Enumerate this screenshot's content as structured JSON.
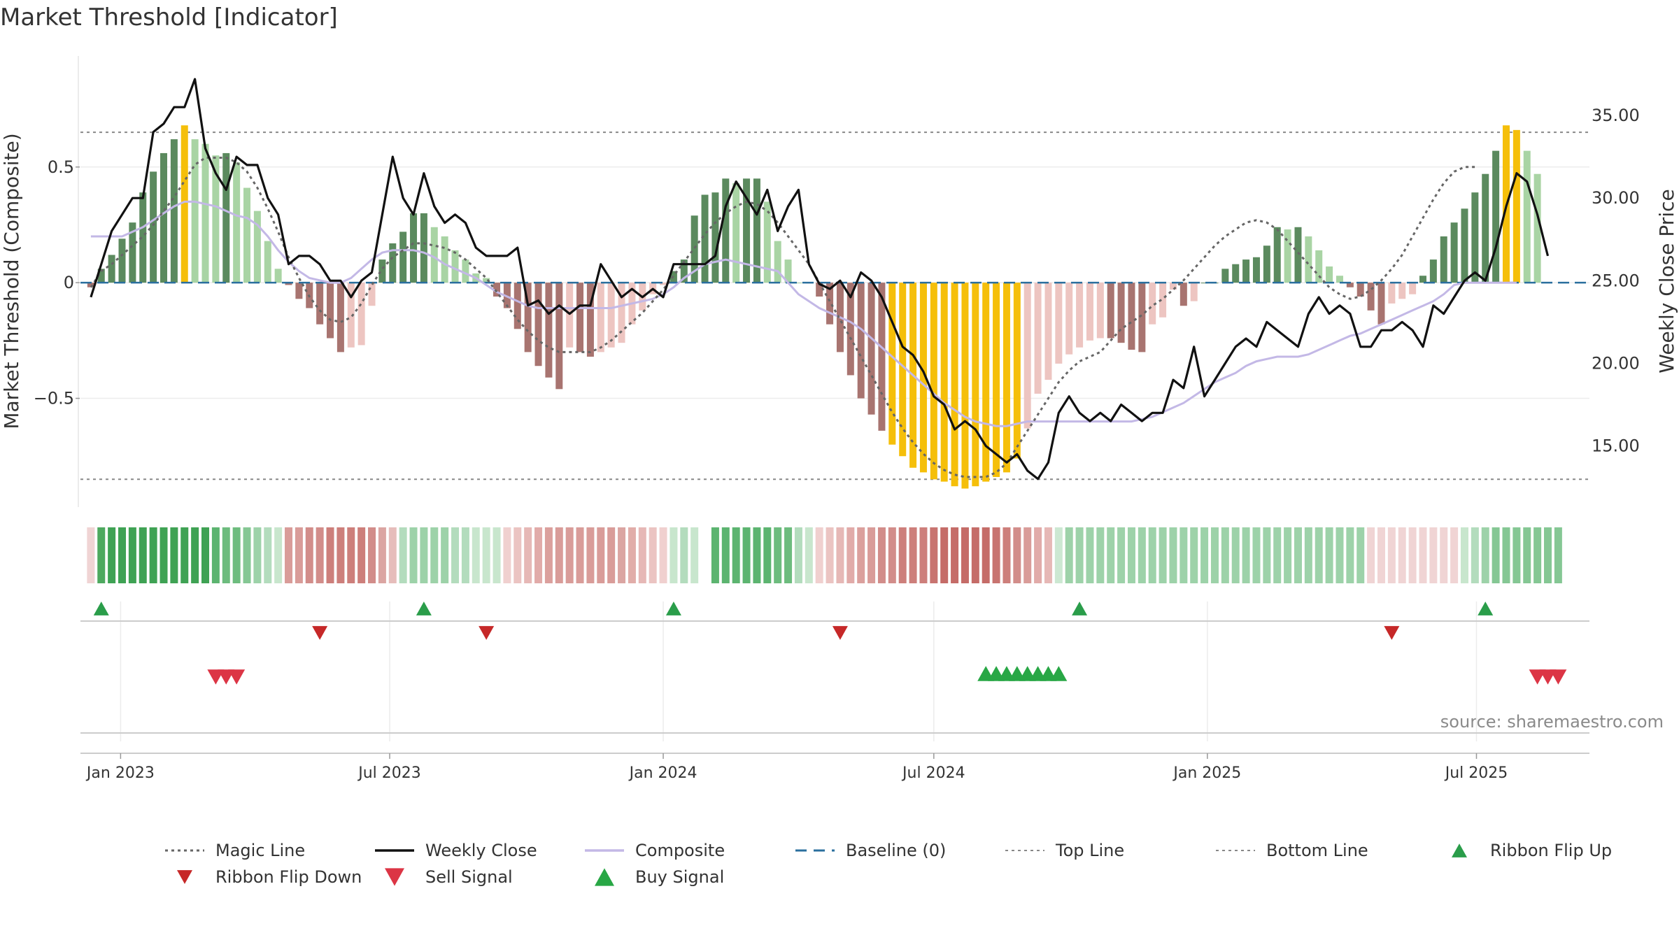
{
  "chart_data": {
    "type": "bar",
    "title": "Market Threshold [Indicator]",
    "ylabel_left": "Market Threshold (Composite)",
    "ylabel_right": "Weekly Close Price",
    "source": "source: sharemaestro.com",
    "x_range": [
      "2022-12-05",
      "2025-09-15"
    ],
    "x_ticks": [
      {
        "date": "2023-01-01",
        "label": "Jan 2023"
      },
      {
        "date": "2023-07-01",
        "label": "Jul 2023"
      },
      {
        "date": "2024-01-01",
        "label": "Jan 2024"
      },
      {
        "date": "2024-07-01",
        "label": "Jul 2024"
      },
      {
        "date": "2025-01-01",
        "label": "Jan 2025"
      },
      {
        "date": "2025-07-01",
        "label": "Jul 2025"
      }
    ],
    "left_axis": {
      "ylim": [
        -0.97,
        0.98
      ],
      "ticks": [
        {
          "v": 0.5,
          "label": "0.5"
        },
        {
          "v": 0,
          "label": "0"
        },
        {
          "v": -0.5,
          "label": "−0.5"
        }
      ]
    },
    "right_axis": {
      "ylim": [
        11.3,
        38.6
      ],
      "ticks": [
        {
          "v": 35,
          "label": "35.00"
        },
        {
          "v": 30,
          "label": "30.00"
        },
        {
          "v": 25,
          "label": "25.00"
        },
        {
          "v": 20,
          "label": "20.00"
        },
        {
          "v": 15,
          "label": "15.00"
        }
      ]
    },
    "top_line": 0.65,
    "bottom_line": -0.85,
    "start_date": "2022-12-12",
    "week_step_days": 7,
    "composite_bars": [
      -0.02,
      0.06,
      0.12,
      0.19,
      0.26,
      0.39,
      0.48,
      0.56,
      0.62,
      0.68,
      0.62,
      0.6,
      0.55,
      0.56,
      0.52,
      0.41,
      0.31,
      0.18,
      0.06,
      -0.01,
      -0.07,
      -0.11,
      -0.18,
      -0.24,
      -0.3,
      -0.28,
      -0.27,
      -0.1,
      0.1,
      0.17,
      0.22,
      0.3,
      0.3,
      0.24,
      0.2,
      0.14,
      0.1,
      0.04,
      0.02,
      -0.06,
      -0.11,
      -0.2,
      -0.3,
      -0.36,
      -0.41,
      -0.46,
      -0.28,
      -0.3,
      -0.32,
      -0.3,
      -0.28,
      -0.26,
      -0.18,
      -0.12,
      -0.05,
      -0.01,
      0.05,
      0.1,
      0.29,
      0.38,
      0.39,
      0.45,
      0.43,
      0.45,
      0.45,
      0.35,
      0.18,
      0.1,
      0.0,
      0.0,
      -0.06,
      -0.18,
      -0.3,
      -0.4,
      -0.5,
      -0.57,
      -0.64,
      -0.7,
      -0.75,
      -0.8,
      -0.82,
      -0.85,
      -0.86,
      -0.88,
      -0.89,
      -0.88,
      -0.86,
      -0.84,
      -0.82,
      -0.76,
      -0.63,
      -0.48,
      -0.42,
      -0.35,
      -0.31,
      -0.28,
      -0.25,
      -0.24,
      -0.24,
      -0.26,
      -0.29,
      -0.3,
      -0.18,
      -0.15,
      -0.03,
      -0.1,
      -0.08,
      0.0,
      0.0,
      0.06,
      0.08,
      0.1,
      0.11,
      0.16,
      0.24,
      0.23,
      0.24,
      0.2,
      0.14,
      0.07,
      0.03,
      -0.02,
      -0.06,
      -0.12,
      -0.18,
      -0.09,
      -0.07,
      -0.05,
      0.03,
      0.1,
      0.2,
      0.26,
      0.32,
      0.39,
      0.47,
      0.57,
      0.68,
      0.66,
      0.57,
      0.47
    ],
    "magic_line": [
      -0.02,
      0.05,
      0.08,
      0.12,
      0.16,
      0.2,
      0.25,
      0.31,
      0.37,
      0.44,
      0.51,
      0.54,
      0.54,
      0.54,
      0.52,
      0.48,
      0.41,
      0.32,
      0.22,
      0.11,
      0.02,
      -0.06,
      -0.12,
      -0.16,
      -0.17,
      -0.15,
      -0.09,
      -0.01,
      0.06,
      0.11,
      0.14,
      0.17,
      0.17,
      0.16,
      0.15,
      0.13,
      0.1,
      0.06,
      0.02,
      -0.04,
      -0.1,
      -0.16,
      -0.21,
      -0.25,
      -0.28,
      -0.3,
      -0.3,
      -0.3,
      -0.3,
      -0.28,
      -0.25,
      -0.21,
      -0.17,
      -0.13,
      -0.08,
      -0.03,
      0.03,
      0.09,
      0.15,
      0.21,
      0.26,
      0.3,
      0.33,
      0.35,
      0.34,
      0.31,
      0.26,
      0.2,
      0.14,
      0.08,
      0.0,
      -0.08,
      -0.16,
      -0.24,
      -0.32,
      -0.4,
      -0.48,
      -0.56,
      -0.63,
      -0.69,
      -0.74,
      -0.78,
      -0.81,
      -0.83,
      -0.84,
      -0.84,
      -0.84,
      -0.82,
      -0.78,
      -0.71,
      -0.64,
      -0.57,
      -0.5,
      -0.43,
      -0.38,
      -0.34,
      -0.32,
      -0.3,
      -0.25,
      -0.2,
      -0.17,
      -0.14,
      -0.1,
      -0.07,
      -0.03,
      0.01,
      0.06,
      0.11,
      0.16,
      0.2,
      0.23,
      0.26,
      0.27,
      0.26,
      0.23,
      0.18,
      0.13,
      0.08,
      0.03,
      -0.02,
      -0.05,
      -0.07,
      -0.06,
      -0.03,
      0.01,
      0.06,
      0.12,
      0.2,
      0.28,
      0.36,
      0.43,
      0.48,
      0.5,
      0.5
    ],
    "composite_line": [
      0.2,
      0.2,
      0.2,
      0.2,
      0.22,
      0.24,
      0.27,
      0.3,
      0.33,
      0.35,
      0.35,
      0.34,
      0.33,
      0.31,
      0.29,
      0.28,
      0.25,
      0.2,
      0.14,
      0.09,
      0.05,
      0.02,
      0.01,
      0.0,
      0.0,
      0.02,
      0.06,
      0.1,
      0.13,
      0.14,
      0.14,
      0.14,
      0.13,
      0.11,
      0.08,
      0.06,
      0.04,
      0.02,
      -0.01,
      -0.04,
      -0.06,
      -0.08,
      -0.1,
      -0.11,
      -0.11,
      -0.11,
      -0.11,
      -0.11,
      -0.11,
      -0.11,
      -0.11,
      -0.1,
      -0.09,
      -0.08,
      -0.07,
      -0.05,
      -0.02,
      0.02,
      0.05,
      0.08,
      0.09,
      0.1,
      0.09,
      0.08,
      0.07,
      0.06,
      0.05,
      0.0,
      -0.05,
      -0.08,
      -0.11,
      -0.13,
      -0.15,
      -0.17,
      -0.2,
      -0.24,
      -0.28,
      -0.32,
      -0.36,
      -0.4,
      -0.44,
      -0.48,
      -0.52,
      -0.55,
      -0.58,
      -0.6,
      -0.61,
      -0.62,
      -0.62,
      -0.61,
      -0.6,
      -0.6,
      -0.6,
      -0.6,
      -0.6,
      -0.6,
      -0.6,
      -0.6,
      -0.6,
      -0.6,
      -0.6,
      -0.59,
      -0.58,
      -0.56,
      -0.54,
      -0.52,
      -0.49,
      -0.46,
      -0.43,
      -0.41,
      -0.39,
      -0.36,
      -0.34,
      -0.33,
      -0.32,
      -0.32,
      -0.32,
      -0.31,
      -0.29,
      -0.27,
      -0.25,
      -0.23,
      -0.22,
      -0.2,
      -0.18,
      -0.16,
      -0.14,
      -0.12,
      -0.1,
      -0.08,
      -0.05,
      -0.01,
      0.0,
      0.0,
      0.0,
      0.0,
      0.0,
      0.0
    ],
    "weekly_close": [
      24.0,
      26.0,
      28.0,
      29.0,
      30.0,
      30.0,
      34.0,
      34.5,
      35.5,
      35.5,
      37.2,
      33.0,
      31.5,
      30.5,
      32.5,
      32.0,
      32.0,
      30.0,
      29.0,
      26.0,
      26.5,
      26.5,
      26.0,
      25.0,
      25.0,
      24.0,
      25.0,
      25.5,
      29.0,
      32.5,
      30.0,
      29.0,
      31.5,
      29.5,
      28.5,
      29.0,
      28.5,
      27.0,
      26.5,
      26.5,
      26.5,
      27.0,
      23.5,
      23.8,
      23.0,
      23.5,
      23.0,
      23.5,
      23.5,
      26.0,
      25.0,
      24.0,
      24.5,
      24.0,
      24.5,
      24.0,
      26.0,
      26.0,
      26.0,
      26.0,
      26.5,
      29.5,
      31.0,
      30.0,
      29.0,
      30.5,
      28.0,
      29.5,
      30.5,
      26.0,
      24.8,
      24.5,
      25.0,
      24.0,
      25.5,
      25.0,
      24.0,
      22.5,
      21.0,
      20.5,
      19.5,
      18.0,
      17.5,
      16.0,
      16.5,
      16.0,
      15.0,
      14.5,
      14.0,
      14.5,
      13.5,
      13.0,
      14.0,
      17.0,
      18.0,
      17.0,
      16.5,
      17.0,
      16.5,
      17.5,
      17.0,
      16.5,
      17.0,
      17.0,
      19.0,
      18.5,
      21.0,
      18.0,
      19.0,
      20.0,
      21.0,
      21.5,
      21.0,
      22.5,
      22.0,
      21.5,
      21.0,
      23.0,
      24.0,
      23.0,
      23.5,
      23.0,
      21.0,
      21.0,
      22.0,
      22.0,
      22.5,
      22.0,
      21.0,
      23.5,
      23.0,
      24.0,
      25.0,
      25.5,
      25.0,
      27.0,
      29.5,
      31.5,
      31.0,
      29.0,
      26.5
    ],
    "ribbon_colors": [
      "#f0d4d4",
      "#4ea95f",
      "#3fa254",
      "#3fa254",
      "#3fa254",
      "#3fa254",
      "#3fa254",
      "#3fa254",
      "#3fa254",
      "#3fa254",
      "#3fa254",
      "#3fa254",
      "#5cb470",
      "#6dbc7e",
      "#6dbc7e",
      "#85c794",
      "#9dd2a9",
      "#b3dcbd",
      "#c8e6cd",
      "#d99c99",
      "#d99c99",
      "#d28d8a",
      "#d28d8a",
      "#cd7f7b",
      "#cd7f7b",
      "#cd7f7b",
      "#cd7f7b",
      "#d28d8a",
      "#dba5a2",
      "#e6bdbb",
      "#b3dcbd",
      "#9dd2a9",
      "#9dd2a9",
      "#9dd2a9",
      "#9dd2a9",
      "#b3dcbd",
      "#b3dcbd",
      "#c8e6cd",
      "#c8e6cd",
      "#c8e6cd",
      "#f0d0cf",
      "#ebc4c2",
      "#e6b8b6",
      "#e1aba9",
      "#dba09d",
      "#d99c99",
      "#d99c99",
      "#d99c99",
      "#d99c99",
      "#d99c99",
      "#d99c99",
      "#dba5a2",
      "#e1ada9",
      "#e6b8b6",
      "#ebc4c2",
      "#f0d0cf",
      "#c8e6cd",
      "#b3dcbd",
      "#c8e6cd",
      "#ffffff",
      "#5cb470",
      "#5cb470",
      "#5cb470",
      "#5cb470",
      "#5cb470",
      "#5cb470",
      "#6dbc7e",
      "#6dbc7e",
      "#b3dcbd",
      "#c8e6cd",
      "#f0d0cf",
      "#ebc4c2",
      "#e6b8b6",
      "#e1aba9",
      "#dba09d",
      "#d99c99",
      "#d28d8a",
      "#d28d8a",
      "#cd7f7b",
      "#cd7f7b",
      "#cd7f7b",
      "#c87470",
      "#c56c68",
      "#c56c68",
      "#c56c68",
      "#c56c68",
      "#c56c68",
      "#c87470",
      "#cd7f7b",
      "#d28d8a",
      "#d99c99",
      "#e1aba9",
      "#e6b8b6",
      "#cce8d2",
      "#9dd2a9",
      "#9dd2a9",
      "#9dd2a9",
      "#9dd2a9",
      "#9dd2a9",
      "#9dd2a9",
      "#9dd2a9",
      "#9dd2a9",
      "#9dd2a9",
      "#9dd2a9",
      "#9dd2a9",
      "#9dd2a9",
      "#9dd2a9",
      "#9dd2a9",
      "#9dd2a9",
      "#9dd2a9",
      "#9dd2a9",
      "#9dd2a9",
      "#9dd2a9",
      "#9dd2a9",
      "#9dd2a9",
      "#9dd2a9",
      "#9dd2a9",
      "#9dd2a9",
      "#9dd2a9",
      "#9dd2a9",
      "#9dd2a9",
      "#9dd2a9",
      "#9dd2a9",
      "#f0d4d4",
      "#f0d4d4",
      "#f0d4d4",
      "#f0d4d4",
      "#f0d4d4",
      "#f0d4d4",
      "#f0d4d4",
      "#f0d4d4",
      "#f0d4d4",
      "#c8e6cd",
      "#b3dcbd",
      "#9dd2a9",
      "#85c794",
      "#85c794",
      "#85c794",
      "#85c794",
      "#85c794",
      "#85c794",
      "#85c794"
    ],
    "ribbon_flip_up": [
      "2022-12-19",
      "2023-07-24",
      "2024-01-08",
      "2024-10-07",
      "2025-07-07"
    ],
    "ribbon_flip_down": [
      "2023-05-15",
      "2023-09-04",
      "2024-04-29",
      "2025-05-05"
    ],
    "sell_signal": [
      "2023-03-06",
      "2023-03-13",
      "2023-03-20",
      "2025-08-11",
      "2025-08-18",
      "2025-08-25"
    ],
    "buy_signal": [
      "2024-08-05",
      "2024-08-12",
      "2024-08-19",
      "2024-08-26",
      "2024-09-02",
      "2024-09-09",
      "2024-09-16",
      "2024-09-23"
    ],
    "legend": [
      {
        "label": "Magic Line",
        "kind": "dotted",
        "color": "#666666"
      },
      {
        "label": "Weekly Close",
        "kind": "solid",
        "color": "#111111"
      },
      {
        "label": "Composite",
        "kind": "solid",
        "color": "#c3b8e6"
      },
      {
        "label": "Baseline (0)",
        "kind": "dashed",
        "color": "#2a6f9e"
      },
      {
        "label": "Top Line",
        "kind": "dotted-light",
        "color": "#888888"
      },
      {
        "label": "Bottom Line",
        "kind": "dotted-light",
        "color": "#888888"
      },
      {
        "label": "Ribbon Flip Up",
        "kind": "tri-up",
        "color": "#2a9d4a"
      },
      {
        "label": "Ribbon Flip Down",
        "kind": "tri-down",
        "color": "#c62828"
      },
      {
        "label": "Sell Signal",
        "kind": "tri-down-big",
        "color": "#dc3545"
      },
      {
        "label": "Buy Signal",
        "kind": "tri-up-big",
        "color": "#28a745"
      }
    ],
    "colors": {
      "bull_dark": "#5b8a5e",
      "bull_light": "#a9d4a4",
      "bear_dark": "#a87470",
      "bear_light": "#edc5c1",
      "extreme": "#f5bf0a"
    }
  }
}
